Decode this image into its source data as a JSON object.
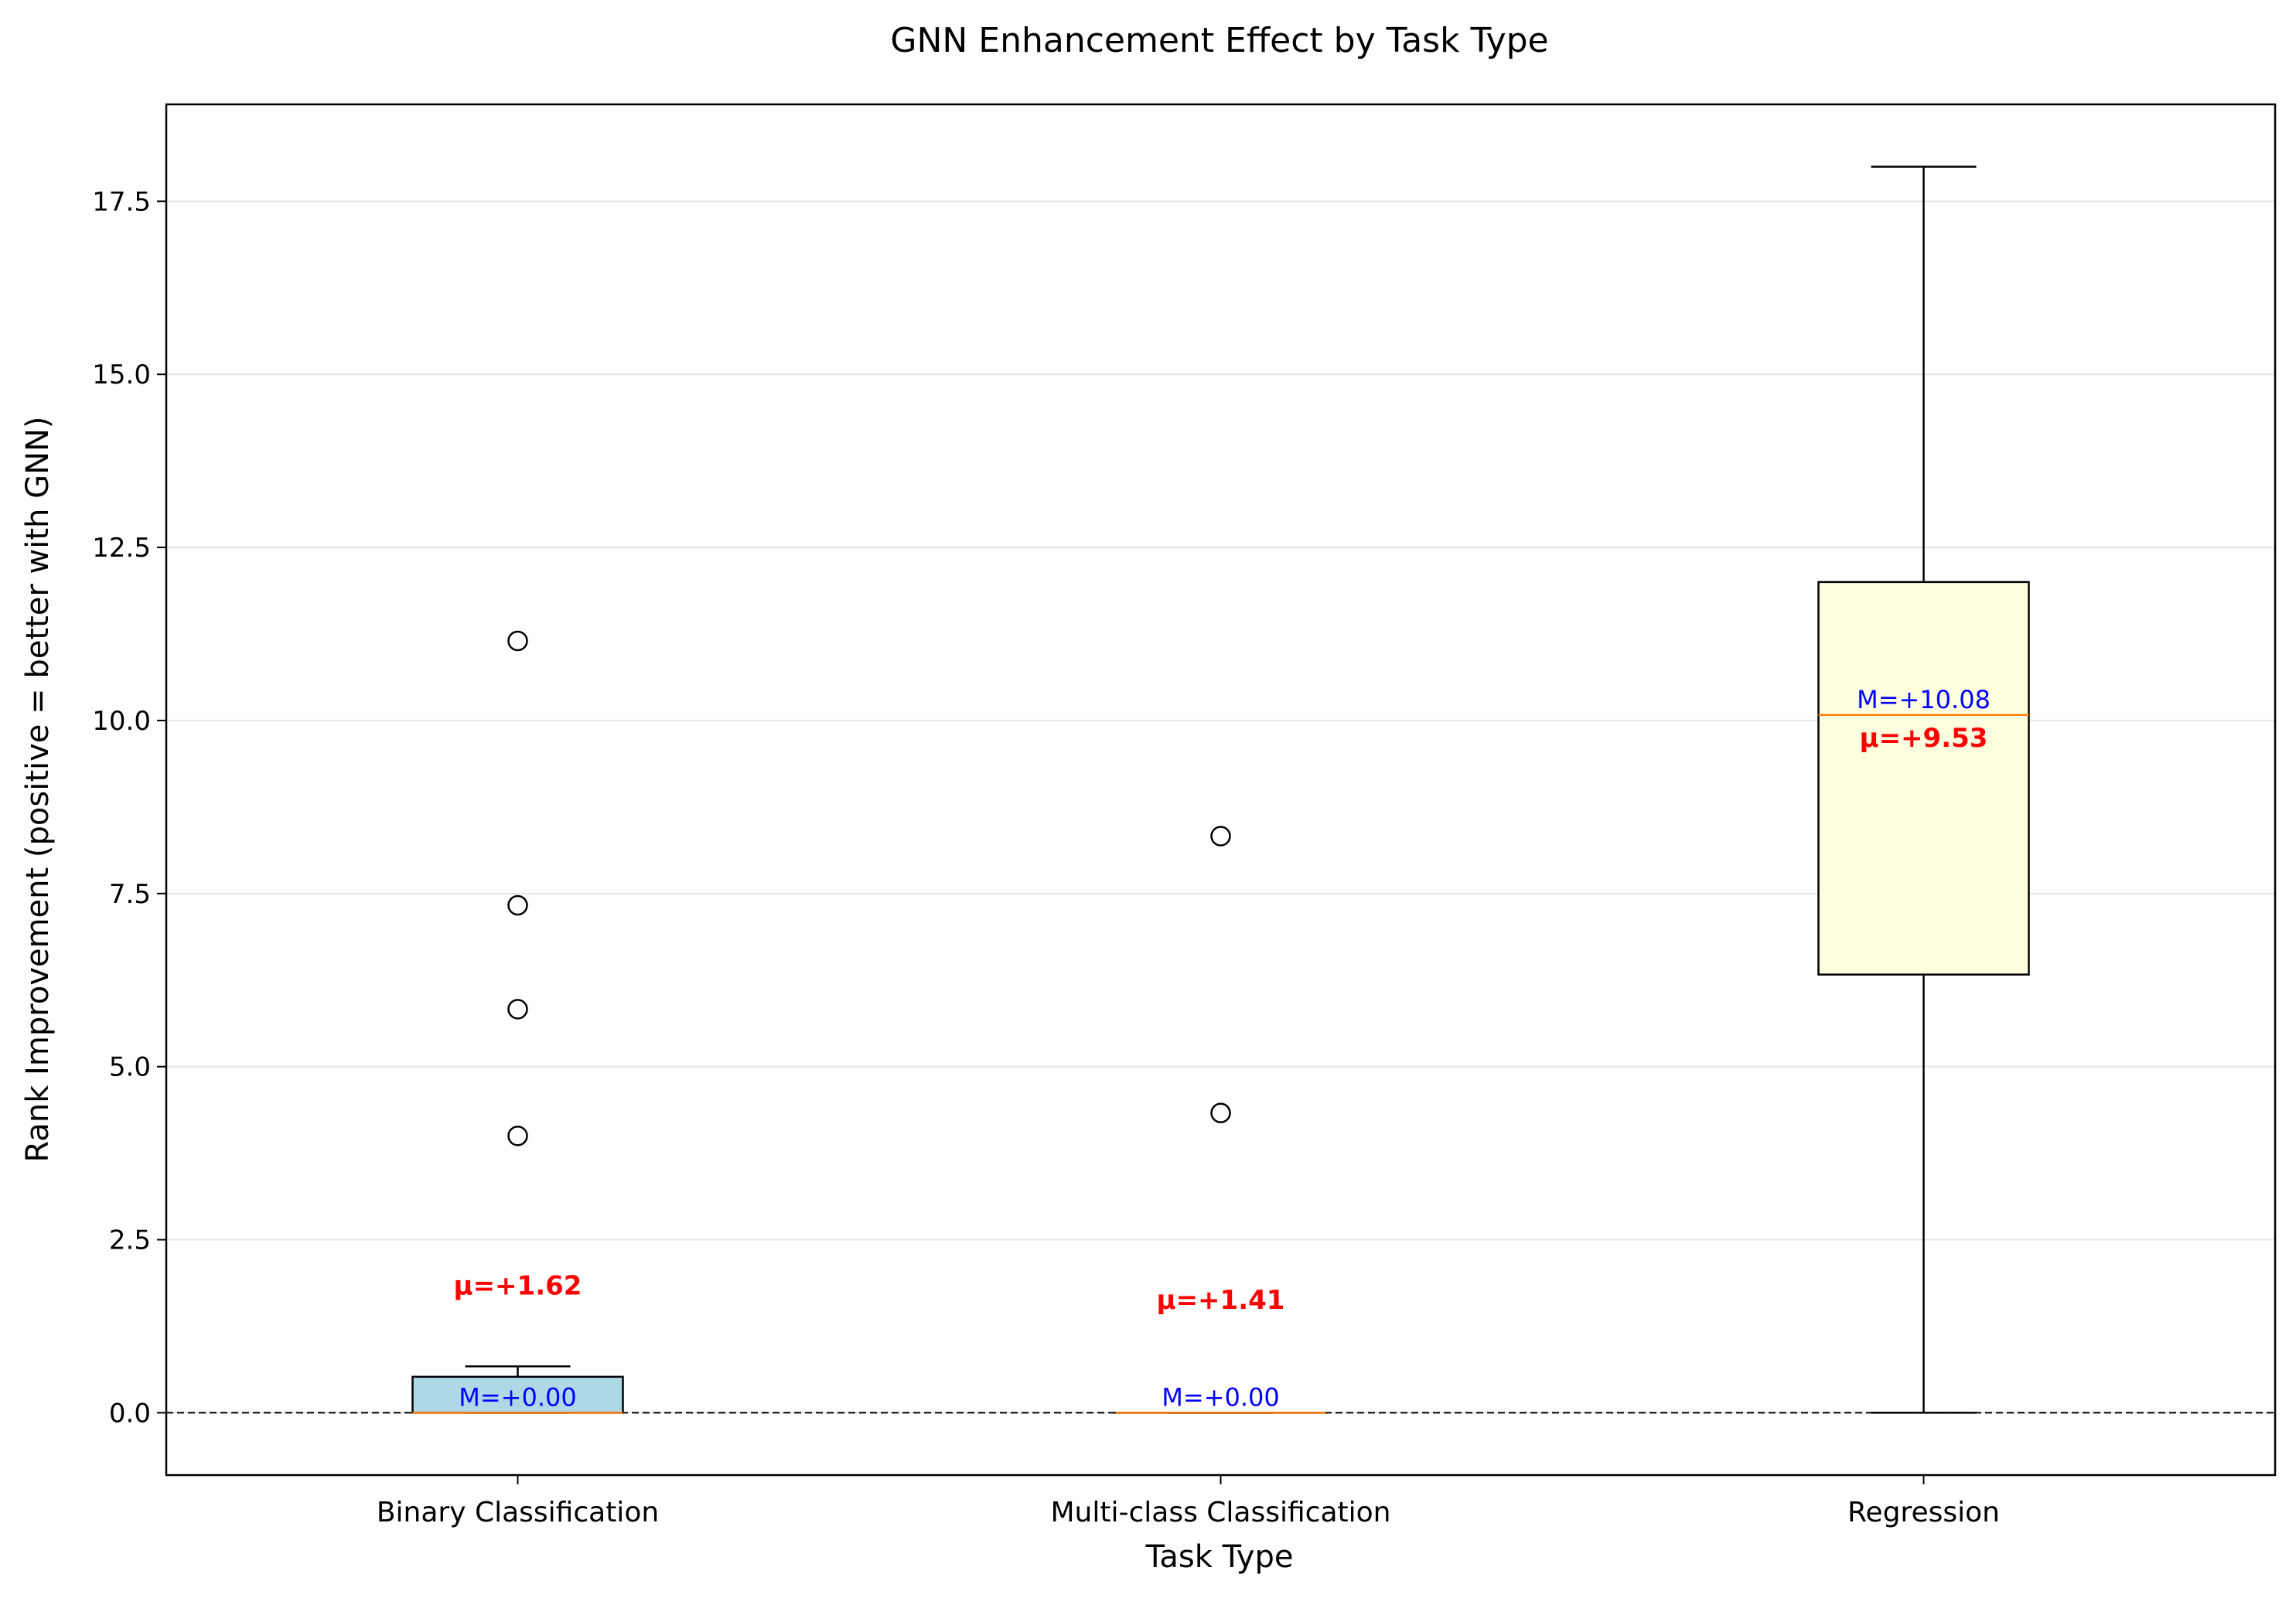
{
  "chart_data": {
    "type": "box",
    "title": "GNN Enhancement Effect by Task Type",
    "xlabel": "Task Type",
    "ylabel": "Rank Improvement (positive = better with GNN)",
    "ylim": [
      -0.9,
      18.9
    ],
    "yticks": [
      0.0,
      2.5,
      5.0,
      7.5,
      10.0,
      12.5,
      15.0,
      17.5
    ],
    "ytick_labels": [
      "0.0",
      "2.5",
      "5.0",
      "7.5",
      "10.0",
      "12.5",
      "15.0",
      "17.5"
    ],
    "grid": "y",
    "reference_line": 0.0,
    "categories": [
      "Binary Classification",
      "Multi-class Classification",
      "Regression"
    ],
    "boxes": [
      {
        "category": "Binary Classification",
        "whisker_low": 0.0,
        "q1": 0.0,
        "median": 0.0,
        "q3": 0.52,
        "whisker_high": 0.67,
        "outliers": [
          4.0,
          5.83,
          7.33,
          11.15
        ],
        "mean": 1.62,
        "mean_label": "μ=+1.62",
        "median_label": "M=+0.00",
        "fill": "#add8e6"
      },
      {
        "category": "Multi-class Classification",
        "whisker_low": 0.0,
        "q1": 0.0,
        "median": 0.0,
        "q3": 0.0,
        "whisker_high": 0.0,
        "outliers": [
          4.33,
          8.33
        ],
        "mean": 1.41,
        "mean_label": "μ=+1.41",
        "median_label": "M=+0.00",
        "fill": "#90ee90"
      },
      {
        "category": "Regression",
        "whisker_low": 0.0,
        "q1": 6.33,
        "median": 10.08,
        "q3": 12.0,
        "whisker_high": 18.0,
        "outliers": [],
        "mean": 9.53,
        "mean_label": "μ=+9.53",
        "median_label": "M=+10.08",
        "fill": "#ffffe0"
      }
    ],
    "colors": {
      "median_line": "#ff7f0e",
      "mean_text": "#ff0000",
      "median_text": "#0000ff",
      "grid": "#e6e6e6",
      "axis": "#000000"
    }
  }
}
